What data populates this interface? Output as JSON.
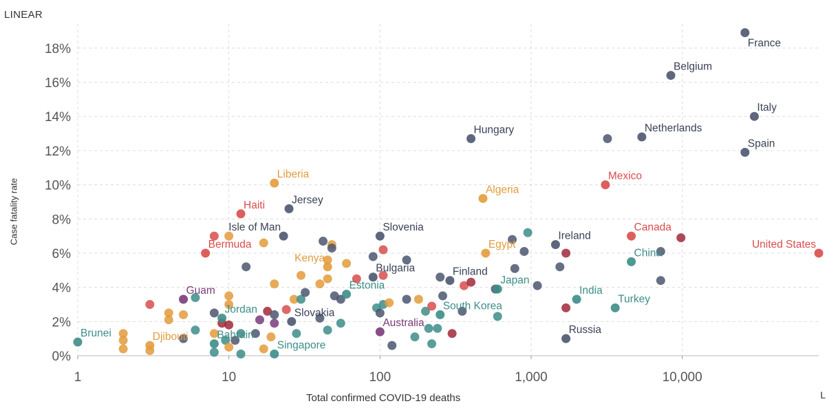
{
  "chart_data": {
    "type": "scatter",
    "title": "",
    "xlabel": "Total confirmed COVID-19 deaths",
    "ylabel": "Case fatality rate",
    "scale_toggle": "LINEAR",
    "scale_toggle_right": "L",
    "x_scale": "log",
    "xlim": [
      1,
      80000
    ],
    "ylim": [
      0,
      19
    ],
    "x_ticks": [
      {
        "value": 1,
        "label": "1"
      },
      {
        "value": 10,
        "label": "10"
      },
      {
        "value": 100,
        "label": "100"
      },
      {
        "value": 1000,
        "label": "1,000"
      },
      {
        "value": 10000,
        "label": "10,000"
      }
    ],
    "y_ticks": [
      {
        "value": 0,
        "label": "0%"
      },
      {
        "value": 2,
        "label": "2%"
      },
      {
        "value": 4,
        "label": "4%"
      },
      {
        "value": 6,
        "label": "6%"
      },
      {
        "value": 8,
        "label": "8%"
      },
      {
        "value": 10,
        "label": "10%"
      },
      {
        "value": 12,
        "label": "12%"
      },
      {
        "value": 14,
        "label": "14%"
      },
      {
        "value": 16,
        "label": "16%"
      },
      {
        "value": 18,
        "label": "18%"
      }
    ],
    "grid": true,
    "colors": {
      "europe": "#4c5670",
      "africa": "#e39b3c",
      "americas": "#d94c4c",
      "asia": "#3c8d88",
      "oceania": "#7a3b7a",
      "dark_red": "#a1283a"
    },
    "labeled_points": [
      {
        "name": "France",
        "x": 26000,
        "y": 18.9,
        "group": "europe",
        "pos": "br"
      },
      {
        "name": "Belgium",
        "x": 8400,
        "y": 16.4,
        "group": "europe",
        "pos": "tr"
      },
      {
        "name": "Italy",
        "x": 30000,
        "y": 14.0,
        "group": "europe",
        "pos": "tr"
      },
      {
        "name": "Netherlands",
        "x": 5400,
        "y": 12.8,
        "group": "europe",
        "pos": "tr"
      },
      {
        "name": "Spain",
        "x": 26000,
        "y": 11.9,
        "group": "europe",
        "pos": "tr"
      },
      {
        "name": "Hungary",
        "x": 400,
        "y": 12.7,
        "group": "europe",
        "pos": "tr"
      },
      {
        "name": "Mexico",
        "x": 3100,
        "y": 10.0,
        "group": "americas",
        "pos": "tr"
      },
      {
        "name": "Liberia",
        "x": 20,
        "y": 10.1,
        "group": "africa",
        "pos": "tr"
      },
      {
        "name": "Algeria",
        "x": 480,
        "y": 9.2,
        "group": "africa",
        "pos": "tr"
      },
      {
        "name": "Haiti",
        "x": 12,
        "y": 8.3,
        "group": "americas",
        "pos": "tr"
      },
      {
        "name": "Jersey",
        "x": 25,
        "y": 8.6,
        "group": "europe",
        "pos": "tr"
      },
      {
        "name": "Isle of Man",
        "x": 23,
        "y": 7.0,
        "group": "europe",
        "pos": "tl"
      },
      {
        "name": "Slovenia",
        "x": 100,
        "y": 7.0,
        "group": "europe",
        "pos": "tr"
      },
      {
        "name": "Ireland",
        "x": 1450,
        "y": 6.5,
        "group": "europe",
        "pos": "tr"
      },
      {
        "name": "Canada",
        "x": 4600,
        "y": 7.0,
        "group": "americas",
        "pos": "tr"
      },
      {
        "name": "United States",
        "x": 80000,
        "y": 6.0,
        "group": "americas",
        "pos": "tl"
      },
      {
        "name": "Bermuda",
        "x": 7,
        "y": 6.0,
        "group": "americas",
        "pos": "tr"
      },
      {
        "name": "Egypt",
        "x": 500,
        "y": 6.0,
        "group": "africa",
        "pos": "tr"
      },
      {
        "name": "China",
        "x": 4600,
        "y": 5.5,
        "group": "asia",
        "pos": "tr"
      },
      {
        "name": "Kenya",
        "x": 45,
        "y": 5.2,
        "group": "africa",
        "pos": "tl"
      },
      {
        "name": "Bulgaria",
        "x": 90,
        "y": 4.6,
        "group": "europe",
        "pos": "tr"
      },
      {
        "name": "Finland",
        "x": 290,
        "y": 4.4,
        "group": "europe",
        "pos": "tr"
      },
      {
        "name": "Japan",
        "x": 600,
        "y": 3.9,
        "group": "asia",
        "pos": "tr"
      },
      {
        "name": "Estonia",
        "x": 60,
        "y": 3.6,
        "group": "asia",
        "pos": "tr"
      },
      {
        "name": "India",
        "x": 2000,
        "y": 3.3,
        "group": "asia",
        "pos": "tr"
      },
      {
        "name": "Guam",
        "x": 5,
        "y": 3.3,
        "group": "oceania",
        "pos": "tr"
      },
      {
        "name": "Turkey",
        "x": 3600,
        "y": 2.8,
        "group": "asia",
        "pos": "tr"
      },
      {
        "name": "South Korea",
        "x": 250,
        "y": 2.4,
        "group": "asia",
        "pos": "tr"
      },
      {
        "name": "Jordan",
        "x": 9,
        "y": 2.2,
        "group": "asia",
        "pos": "tr"
      },
      {
        "name": "Slovakia",
        "x": 26,
        "y": 2.0,
        "group": "europe",
        "pos": "tr"
      },
      {
        "name": "Australia",
        "x": 100,
        "y": 1.4,
        "group": "oceania",
        "pos": "tr"
      },
      {
        "name": "Russia",
        "x": 1700,
        "y": 1.0,
        "group": "europe",
        "pos": "tr"
      },
      {
        "name": "Brunei",
        "x": 1,
        "y": 0.8,
        "group": "asia",
        "pos": "tr"
      },
      {
        "name": "Djibouti",
        "x": 3,
        "y": 0.6,
        "group": "africa",
        "pos": "tr"
      },
      {
        "name": "Bahrain",
        "x": 8,
        "y": 0.7,
        "group": "asia",
        "pos": "tr"
      },
      {
        "name": "Singapore",
        "x": 20,
        "y": 0.1,
        "group": "asia",
        "pos": "tr"
      }
    ],
    "unlabeled_points": [
      {
        "x": 2,
        "y": 1.3,
        "group": "africa"
      },
      {
        "x": 2,
        "y": 0.9,
        "group": "africa"
      },
      {
        "x": 2,
        "y": 0.4,
        "group": "africa"
      },
      {
        "x": 3,
        "y": 3.0,
        "group": "americas"
      },
      {
        "x": 3,
        "y": 0.3,
        "group": "africa"
      },
      {
        "x": 4,
        "y": 2.5,
        "group": "africa"
      },
      {
        "x": 4,
        "y": 2.1,
        "group": "africa"
      },
      {
        "x": 5,
        "y": 2.4,
        "group": "africa"
      },
      {
        "x": 5,
        "y": 1.0,
        "group": "europe"
      },
      {
        "x": 6,
        "y": 3.4,
        "group": "asia"
      },
      {
        "x": 6,
        "y": 1.5,
        "group": "asia"
      },
      {
        "x": 8,
        "y": 7.0,
        "group": "americas"
      },
      {
        "x": 8,
        "y": 2.5,
        "group": "europe"
      },
      {
        "x": 8,
        "y": 1.3,
        "group": "africa"
      },
      {
        "x": 8,
        "y": 0.2,
        "group": "asia"
      },
      {
        "x": 9,
        "y": 1.9,
        "group": "dark_red"
      },
      {
        "x": 9.5,
        "y": 0.9,
        "group": "asia"
      },
      {
        "x": 10,
        "y": 7.0,
        "group": "africa"
      },
      {
        "x": 10,
        "y": 3.5,
        "group": "africa"
      },
      {
        "x": 10,
        "y": 3.0,
        "group": "africa"
      },
      {
        "x": 10,
        "y": 1.8,
        "group": "dark_red"
      },
      {
        "x": 10,
        "y": 0.5,
        "group": "africa"
      },
      {
        "x": 11,
        "y": 0.9,
        "group": "europe"
      },
      {
        "x": 12,
        "y": 1.3,
        "group": "asia"
      },
      {
        "x": 12,
        "y": 0.1,
        "group": "asia"
      },
      {
        "x": 13,
        "y": 5.2,
        "group": "europe"
      },
      {
        "x": 15,
        "y": 1.3,
        "group": "europe"
      },
      {
        "x": 16,
        "y": 2.1,
        "group": "oceania"
      },
      {
        "x": 17,
        "y": 0.4,
        "group": "africa"
      },
      {
        "x": 17,
        "y": 6.6,
        "group": "africa"
      },
      {
        "x": 18,
        "y": 2.6,
        "group": "dark_red"
      },
      {
        "x": 19,
        "y": 1.1,
        "group": "africa"
      },
      {
        "x": 20,
        "y": 4.2,
        "group": "africa"
      },
      {
        "x": 20,
        "y": 2.4,
        "group": "europe"
      },
      {
        "x": 20,
        "y": 1.9,
        "group": "oceania"
      },
      {
        "x": 24,
        "y": 2.7,
        "group": "americas"
      },
      {
        "x": 27,
        "y": 3.3,
        "group": "africa"
      },
      {
        "x": 28,
        "y": 1.3,
        "group": "asia"
      },
      {
        "x": 30,
        "y": 4.7,
        "group": "africa"
      },
      {
        "x": 30,
        "y": 3.3,
        "group": "asia"
      },
      {
        "x": 32,
        "y": 3.7,
        "group": "europe"
      },
      {
        "x": 40,
        "y": 4.2,
        "group": "africa"
      },
      {
        "x": 40,
        "y": 2.2,
        "group": "europe"
      },
      {
        "x": 42,
        "y": 6.7,
        "group": "europe"
      },
      {
        "x": 45,
        "y": 5.6,
        "group": "africa"
      },
      {
        "x": 45,
        "y": 4.5,
        "group": "africa"
      },
      {
        "x": 45,
        "y": 1.5,
        "group": "asia"
      },
      {
        "x": 48,
        "y": 6.5,
        "group": "africa"
      },
      {
        "x": 48,
        "y": 6.3,
        "group": "europe"
      },
      {
        "x": 50,
        "y": 3.5,
        "group": "europe"
      },
      {
        "x": 55,
        "y": 3.3,
        "group": "europe"
      },
      {
        "x": 55,
        "y": 1.9,
        "group": "asia"
      },
      {
        "x": 60,
        "y": 5.4,
        "group": "africa"
      },
      {
        "x": 70,
        "y": 4.5,
        "group": "americas"
      },
      {
        "x": 90,
        "y": 5.8,
        "group": "europe"
      },
      {
        "x": 95,
        "y": 2.8,
        "group": "asia"
      },
      {
        "x": 100,
        "y": 2.5,
        "group": "europe"
      },
      {
        "x": 105,
        "y": 6.2,
        "group": "americas"
      },
      {
        "x": 105,
        "y": 4.7,
        "group": "americas"
      },
      {
        "x": 105,
        "y": 3.0,
        "group": "asia"
      },
      {
        "x": 115,
        "y": 3.1,
        "group": "africa"
      },
      {
        "x": 120,
        "y": 0.6,
        "group": "europe"
      },
      {
        "x": 150,
        "y": 5.6,
        "group": "europe"
      },
      {
        "x": 150,
        "y": 3.3,
        "group": "europe"
      },
      {
        "x": 170,
        "y": 1.1,
        "group": "asia"
      },
      {
        "x": 180,
        "y": 3.3,
        "group": "africa"
      },
      {
        "x": 200,
        "y": 2.6,
        "group": "asia"
      },
      {
        "x": 210,
        "y": 1.6,
        "group": "asia"
      },
      {
        "x": 220,
        "y": 0.7,
        "group": "asia"
      },
      {
        "x": 220,
        "y": 2.9,
        "group": "americas"
      },
      {
        "x": 240,
        "y": 1.6,
        "group": "asia"
      },
      {
        "x": 250,
        "y": 4.6,
        "group": "europe"
      },
      {
        "x": 260,
        "y": 3.5,
        "group": "europe"
      },
      {
        "x": 300,
        "y": 1.3,
        "group": "dark_red"
      },
      {
        "x": 350,
        "y": 2.6,
        "group": "europe"
      },
      {
        "x": 360,
        "y": 4.1,
        "group": "americas"
      },
      {
        "x": 400,
        "y": 4.3,
        "group": "dark_red"
      },
      {
        "x": 580,
        "y": 3.9,
        "group": "europe"
      },
      {
        "x": 600,
        "y": 2.3,
        "group": "asia"
      },
      {
        "x": 750,
        "y": 6.8,
        "group": "europe"
      },
      {
        "x": 780,
        "y": 5.1,
        "group": "europe"
      },
      {
        "x": 900,
        "y": 6.1,
        "group": "europe"
      },
      {
        "x": 950,
        "y": 7.2,
        "group": "asia"
      },
      {
        "x": 1100,
        "y": 4.1,
        "group": "europe"
      },
      {
        "x": 1550,
        "y": 5.2,
        "group": "europe"
      },
      {
        "x": 1700,
        "y": 6.0,
        "group": "dark_red"
      },
      {
        "x": 1700,
        "y": 2.8,
        "group": "dark_red"
      },
      {
        "x": 3200,
        "y": 12.7,
        "group": "europe"
      },
      {
        "x": 7200,
        "y": 4.4,
        "group": "europe"
      },
      {
        "x": 7200,
        "y": 6.1,
        "group": "europe"
      },
      {
        "x": 9800,
        "y": 6.9,
        "group": "dark_red"
      }
    ]
  }
}
